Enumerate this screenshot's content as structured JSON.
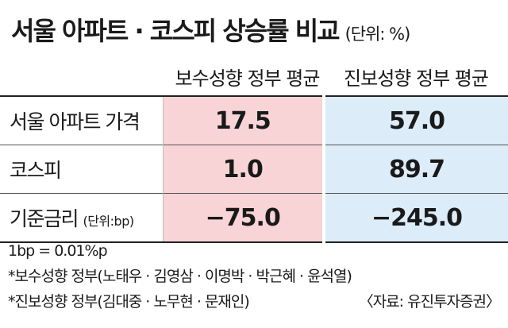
{
  "title": "서울 아파트 · 코스피 상승률 비교",
  "unit": "(단위: %)",
  "chart_data": {
    "type": "table",
    "title": "서울 아파트 · 코스피 상승률 비교",
    "unit": "(단위: %)",
    "columns": [
      "보수성향 정부 평균",
      "진보성향 정부 평균"
    ],
    "rows": [
      {
        "label": "서울 아파트 가격",
        "sublabel": "",
        "values": [
          "17.5",
          "57.0"
        ]
      },
      {
        "label": "코스피",
        "sublabel": "",
        "values": [
          "1.0",
          "89.7"
        ]
      },
      {
        "label": "기준금리",
        "sublabel": "(단위:bp)",
        "values": [
          "−75.0",
          "−245.0"
        ]
      }
    ]
  },
  "colors": {
    "conservative_column": "#f9d4d7",
    "progressive_column": "#dcecf8"
  },
  "notes": {
    "bp": "1bp = 0.01%p",
    "conservative": "*보수성향 정부(노태우 · 김영삼 · 이명박 · 박근혜 · 윤석열)",
    "progressive": "*진보성향 정부(김대중 · 노무현 · 문재인)",
    "source": "〈자료: 유진투자증권〉"
  }
}
